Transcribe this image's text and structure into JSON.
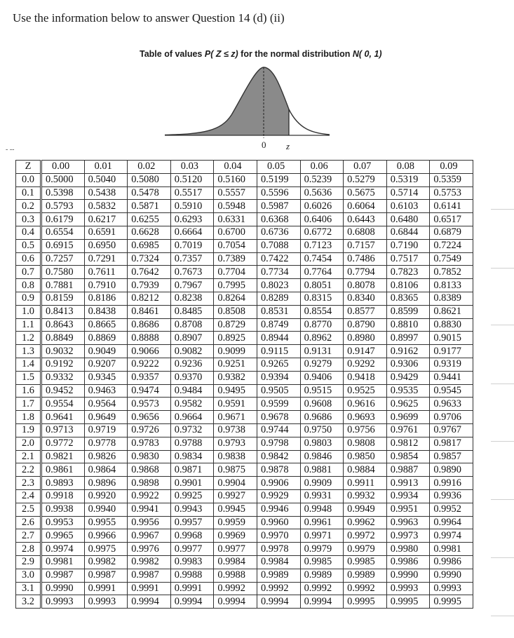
{
  "instruction": "Use the information below to answer Question 14 (d) (ii)",
  "table_title": {
    "prefix": "Table of values ",
    "expr": "P( Z ≤ z)",
    "middle": " for the normal distribution ",
    "dist": "N( 0, 1)"
  },
  "figure": {
    "zero_label": "0",
    "z_label": "z"
  },
  "scan_mark": "- --",
  "table": {
    "corner": "Z",
    "columns": [
      "0.00",
      "0.01",
      "0.02",
      "0.03",
      "0.04",
      "0.05",
      "0.06",
      "0.07",
      "0.08",
      "0.09"
    ],
    "rows": [
      {
        "z": "0.0",
        "v": [
          "0.5000",
          "0.5040",
          "0.5080",
          "0.5120",
          "0.5160",
          "0.5199",
          "0.5239",
          "0.5279",
          "0.5319",
          "0.5359"
        ]
      },
      {
        "z": "0.1",
        "v": [
          "0.5398",
          "0.5438",
          "0.5478",
          "0.5517",
          "0.5557",
          "0.5596",
          "0.5636",
          "0.5675",
          "0.5714",
          "0.5753"
        ]
      },
      {
        "z": "0.2",
        "v": [
          "0.5793",
          "0.5832",
          "0.5871",
          "0.5910",
          "0.5948",
          "0.5987",
          "0.6026",
          "0.6064",
          "0.6103",
          "0.6141"
        ]
      },
      {
        "z": "0.3",
        "v": [
          "0.6179",
          "0.6217",
          "0.6255",
          "0.6293",
          "0.6331",
          "0.6368",
          "0.6406",
          "0.6443",
          "0.6480",
          "0.6517"
        ]
      },
      {
        "z": "0.4",
        "v": [
          "0.6554",
          "0.6591",
          "0.6628",
          "0.6664",
          "0.6700",
          "0.6736",
          "0.6772",
          "0.6808",
          "0.6844",
          "0.6879"
        ]
      },
      {
        "z": "0.5",
        "v": [
          "0.6915",
          "0.6950",
          "0.6985",
          "0.7019",
          "0.7054",
          "0.7088",
          "0.7123",
          "0.7157",
          "0.7190",
          "0.7224"
        ]
      },
      {
        "z": "0.6",
        "v": [
          "0.7257",
          "0.7291",
          "0.7324",
          "0.7357",
          "0.7389",
          "0.7422",
          "0.7454",
          "0.7486",
          "0.7517",
          "0.7549"
        ]
      },
      {
        "z": "0.7",
        "v": [
          "0.7580",
          "0.7611",
          "0.7642",
          "0.7673",
          "0.7704",
          "0.7734",
          "0.7764",
          "0.7794",
          "0.7823",
          "0.7852"
        ]
      },
      {
        "z": "0.8",
        "v": [
          "0.7881",
          "0.7910",
          "0.7939",
          "0.7967",
          "0.7995",
          "0.8023",
          "0.8051",
          "0.8078",
          "0.8106",
          "0.8133"
        ]
      },
      {
        "z": "0.9",
        "v": [
          "0.8159",
          "0.8186",
          "0.8212",
          "0.8238",
          "0.8264",
          "0.8289",
          "0.8315",
          "0.8340",
          "0.8365",
          "0.8389"
        ]
      },
      {
        "z": "1.0",
        "v": [
          "0.8413",
          "0.8438",
          "0.8461",
          "0.8485",
          "0.8508",
          "0.8531",
          "0.8554",
          "0.8577",
          "0.8599",
          "0.8621"
        ]
      },
      {
        "z": "1.1",
        "v": [
          "0.8643",
          "0.8665",
          "0.8686",
          "0.8708",
          "0.8729",
          "0.8749",
          "0.8770",
          "0.8790",
          "0.8810",
          "0.8830"
        ]
      },
      {
        "z": "1.2",
        "v": [
          "0.8849",
          "0.8869",
          "0.8888",
          "0.8907",
          "0.8925",
          "0.8944",
          "0.8962",
          "0.8980",
          "0.8997",
          "0.9015"
        ]
      },
      {
        "z": "1.3",
        "v": [
          "0.9032",
          "0.9049",
          "0.9066",
          "0.9082",
          "0.9099",
          "0.9115",
          "0.9131",
          "0.9147",
          "0.9162",
          "0.9177"
        ]
      },
      {
        "z": "1.4",
        "v": [
          "0.9192",
          "0.9207",
          "0.9222",
          "0.9236",
          "0.9251",
          "0.9265",
          "0.9279",
          "0.9292",
          "0.9306",
          "0.9319"
        ]
      },
      {
        "z": "1.5",
        "v": [
          "0.9332",
          "0.9345",
          "0.9357",
          "0.9370",
          "0.9382",
          "0.9394",
          "0.9406",
          "0.9418",
          "0.9429",
          "0.9441"
        ]
      },
      {
        "z": "1.6",
        "v": [
          "0.9452",
          "0.9463",
          "0.9474",
          "0.9484",
          "0.9495",
          "0.9505",
          "0.9515",
          "0.9525",
          "0.9535",
          "0.9545"
        ]
      },
      {
        "z": "1.7",
        "v": [
          "0.9554",
          "0.9564",
          "0.9573",
          "0.9582",
          "0.9591",
          "0.9599",
          "0.9608",
          "0.9616",
          "0.9625",
          "0.9633"
        ]
      },
      {
        "z": "1.8",
        "v": [
          "0.9641",
          "0.9649",
          "0.9656",
          "0.9664",
          "0.9671",
          "0.9678",
          "0.9686",
          "0.9693",
          "0.9699",
          "0.9706"
        ]
      },
      {
        "z": "1.9",
        "v": [
          "0.9713",
          "0.9719",
          "0.9726",
          "0.9732",
          "0.9738",
          "0.9744",
          "0.9750",
          "0.9756",
          "0.9761",
          "0.9767"
        ]
      },
      {
        "z": "2.0",
        "v": [
          "0.9772",
          "0.9778",
          "0.9783",
          "0.9788",
          "0.9793",
          "0.9798",
          "0.9803",
          "0.9808",
          "0.9812",
          "0.9817"
        ]
      },
      {
        "z": "2.1",
        "v": [
          "0.9821",
          "0.9826",
          "0.9830",
          "0.9834",
          "0.9838",
          "0.9842",
          "0.9846",
          "0.9850",
          "0.9854",
          "0.9857"
        ]
      },
      {
        "z": "2.2",
        "v": [
          "0.9861",
          "0.9864",
          "0.9868",
          "0.9871",
          "0.9875",
          "0.9878",
          "0.9881",
          "0.9884",
          "0.9887",
          "0.9890"
        ]
      },
      {
        "z": "2.3",
        "v": [
          "0.9893",
          "0.9896",
          "0.9898",
          "0.9901",
          "0.9904",
          "0.9906",
          "0.9909",
          "0.9911",
          "0.9913",
          "0.9916"
        ]
      },
      {
        "z": "2.4",
        "v": [
          "0.9918",
          "0.9920",
          "0.9922",
          "0.9925",
          "0.9927",
          "0.9929",
          "0.9931",
          "0.9932",
          "0.9934",
          "0.9936"
        ]
      },
      {
        "z": "2.5",
        "v": [
          "0.9938",
          "0.9940",
          "0.9941",
          "0.9943",
          "0.9945",
          "0.9946",
          "0.9948",
          "0.9949",
          "0.9951",
          "0.9952"
        ]
      },
      {
        "z": "2.6",
        "v": [
          "0.9953",
          "0.9955",
          "0.9956",
          "0.9957",
          "0.9959",
          "0.9960",
          "0.9961",
          "0.9962",
          "0.9963",
          "0.9964"
        ]
      },
      {
        "z": "2.7",
        "v": [
          "0.9965",
          "0.9966",
          "0.9967",
          "0.9968",
          "0.9969",
          "0.9970",
          "0.9971",
          "0.9972",
          "0.9973",
          "0.9974"
        ]
      },
      {
        "z": "2.8",
        "v": [
          "0.9974",
          "0.9975",
          "0.9976",
          "0.9977",
          "0.9977",
          "0.9978",
          "0.9979",
          "0.9979",
          "0.9980",
          "0.9981"
        ]
      },
      {
        "z": "2.9",
        "v": [
          "0.9981",
          "0.9982",
          "0.9982",
          "0.9983",
          "0.9984",
          "0.9984",
          "0.9985",
          "0.9985",
          "0.9986",
          "0.9986"
        ]
      },
      {
        "z": "3.0",
        "v": [
          "0.9987",
          "0.9987",
          "0.9987",
          "0.9988",
          "0.9988",
          "0.9989",
          "0.9989",
          "0.9989",
          "0.9990",
          "0.9990"
        ]
      },
      {
        "z": "3.1",
        "v": [
          "0.9990",
          "0.9991",
          "0.9991",
          "0.9991",
          "0.9992",
          "0.9992",
          "0.9992",
          "0.9992",
          "0.9993",
          "0.9993"
        ]
      },
      {
        "z": "3.2",
        "v": [
          "0.9993",
          "0.9993",
          "0.9994",
          "0.9994",
          "0.9994",
          "0.9994",
          "0.9994",
          "0.9995",
          "0.9995",
          "0.9995"
        ]
      }
    ]
  }
}
